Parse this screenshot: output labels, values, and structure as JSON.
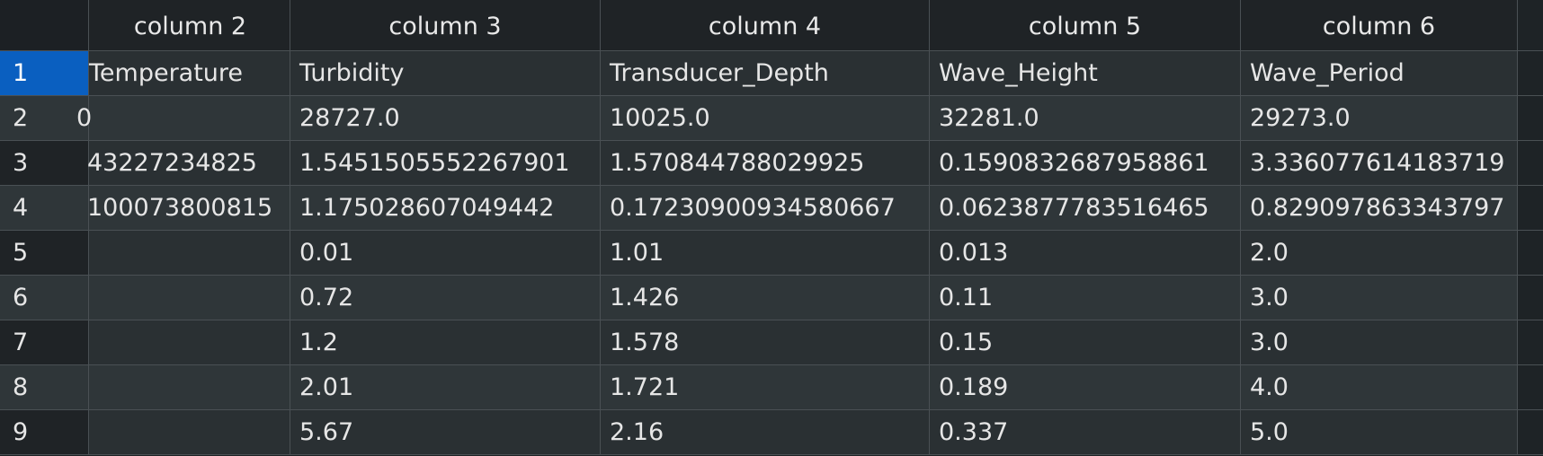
{
  "columns": [
    "column 2",
    "column 3",
    "column 4",
    "column 5",
    "column 6"
  ],
  "rows": [
    {
      "num": "1",
      "cells": [
        "Temperature",
        "Turbidity",
        "Transducer_Depth",
        "Wave_Height",
        "Wave_Period"
      ]
    },
    {
      "num": "2",
      "cells": [
        "0",
        "28727.0",
        "10025.0",
        "32281.0",
        "29273.0"
      ]
    },
    {
      "num": "3",
      "cells": [
        "43227234825",
        "1.5451505552267901",
        "1.570844788029925",
        "0.1590832687958861",
        "3.336077614183719"
      ]
    },
    {
      "num": "4",
      "cells": [
        "100073800815",
        "1.175028607049442",
        "0.17230900934580667",
        "0.0623877783516465",
        "0.829097863343797"
      ]
    },
    {
      "num": "5",
      "cells": [
        "",
        "0.01",
        "1.01",
        "0.013",
        "2.0"
      ]
    },
    {
      "num": "6",
      "cells": [
        "",
        "0.72",
        "1.426",
        "0.11",
        "3.0"
      ]
    },
    {
      "num": "7",
      "cells": [
        "",
        "1.2",
        "1.578",
        "0.15",
        "3.0"
      ]
    },
    {
      "num": "8",
      "cells": [
        "",
        "2.01",
        "1.721",
        "0.189",
        "4.0"
      ]
    },
    {
      "num": "9",
      "cells": [
        "",
        "5.67",
        "2.16",
        "0.337",
        "5.0"
      ]
    }
  ],
  "colors": {
    "selected_row_header": "#0a5fc0",
    "background": "#1e2326",
    "cell": "#2a3033"
  }
}
